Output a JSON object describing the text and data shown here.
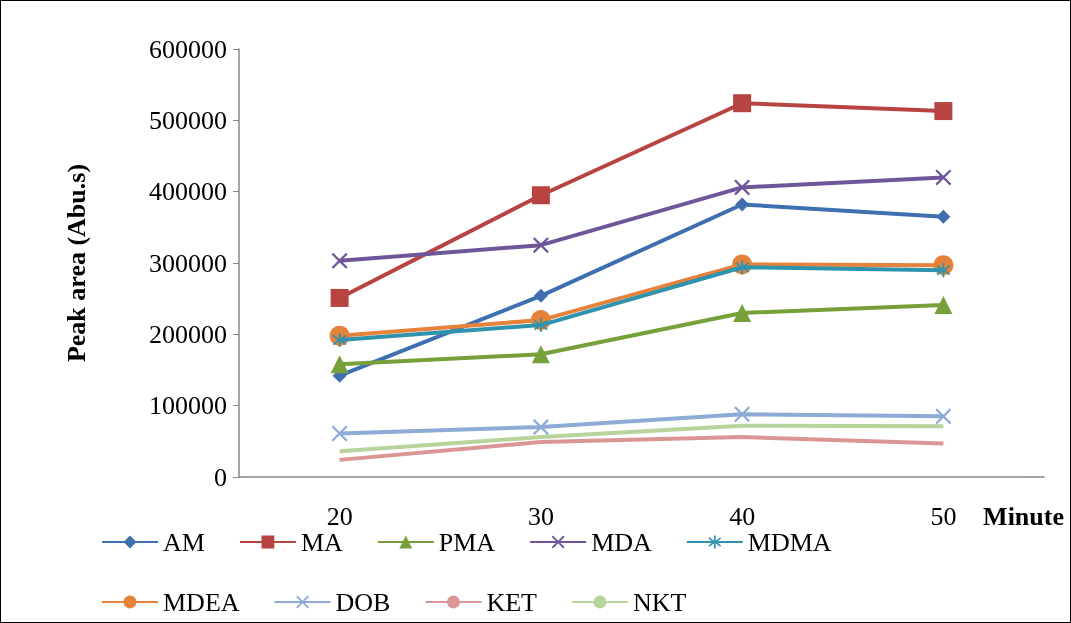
{
  "chart_data": {
    "type": "line",
    "xlabel": "Minute",
    "ylabel": "Peak area (Abu.s)",
    "categories": [
      "20",
      "30",
      "40",
      "50"
    ],
    "ylim": [
      0,
      600000
    ],
    "yticks": [
      0,
      100000,
      200000,
      300000,
      400000,
      500000,
      600000
    ],
    "grid": false,
    "legend": "bottom",
    "line_style": "solid",
    "series": [
      {
        "name": "AM",
        "color": "#3f6faf",
        "marker": "diamond",
        "values": [
          142000,
          254000,
          382000,
          365000
        ]
      },
      {
        "name": "MA",
        "color": "#b84442",
        "marker": "square",
        "values": [
          251000,
          395000,
          524000,
          513000
        ]
      },
      {
        "name": "PMA",
        "color": "#77a03a",
        "marker": "triangle",
        "values": [
          158000,
          172000,
          230000,
          241000
        ]
      },
      {
        "name": "MDA",
        "color": "#6f5699",
        "marker": "cross",
        "values": [
          303000,
          325000,
          406000,
          420000
        ]
      },
      {
        "name": "MDMA",
        "color": "#2f93ad",
        "marker": "star",
        "values": [
          192000,
          213000,
          294000,
          290000
        ]
      },
      {
        "name": "MDEA",
        "color": "#e6823a",
        "marker": "circle",
        "values": [
          198000,
          220000,
          298000,
          297000
        ]
      },
      {
        "name": "DOB",
        "color": "#8eaad6",
        "marker": "cross",
        "values": [
          61000,
          70000,
          88000,
          85000
        ]
      },
      {
        "name": "KET",
        "color": "#d99694",
        "marker": "none",
        "values": [
          24000,
          49000,
          56000,
          47000
        ]
      },
      {
        "name": "NKT",
        "color": "#b8d39c",
        "marker": "none",
        "values": [
          36000,
          56000,
          72000,
          71000
        ]
      }
    ]
  }
}
